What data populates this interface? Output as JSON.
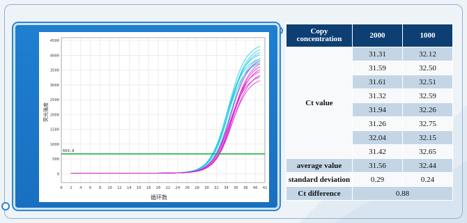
{
  "chart_data": {
    "type": "line",
    "xlabel": "循环数",
    "ylabel": "荧光强度",
    "xlim": [
      0,
      42
    ],
    "ylim": [
      -300,
      4600
    ],
    "x_ticks": [
      0,
      2,
      4,
      6,
      8,
      10,
      12,
      14,
      16,
      18,
      20,
      22,
      24,
      26,
      28,
      30,
      32,
      34,
      36,
      38,
      40,
      42
    ],
    "y_ticks": [
      0,
      500,
      1000,
      1500,
      2000,
      2500,
      3000,
      3500,
      4000,
      4500
    ],
    "threshold": {
      "value": 669.8,
      "label": "669.8",
      "color": "#22b14c"
    },
    "grid": true,
    "series": [
      {
        "color": "#19c8e6",
        "ct": 31.31,
        "plateau": 4400
      },
      {
        "color": "#19c8e6",
        "ct": 31.59,
        "plateau": 4300
      },
      {
        "color": "#19c8e6",
        "ct": 31.61,
        "plateau": 4200
      },
      {
        "color": "#19c8e6",
        "ct": 31.32,
        "plateau": 4100
      },
      {
        "color": "#19c8e6",
        "ct": 31.94,
        "plateau": 4000
      },
      {
        "color": "#19c8e6",
        "ct": 31.26,
        "plateau": 3950
      },
      {
        "color": "#19c8e6",
        "ct": 32.04,
        "plateau": 3900
      },
      {
        "color": "#19c8e6",
        "ct": 31.42,
        "plateau": 3800
      },
      {
        "color": "#e020d0",
        "ct": 32.12,
        "plateau": 3950
      },
      {
        "color": "#e020d0",
        "ct": 32.5,
        "plateau": 3850
      },
      {
        "color": "#e020d0",
        "ct": 32.51,
        "plateau": 3750
      },
      {
        "color": "#e020d0",
        "ct": 32.59,
        "plateau": 3650
      },
      {
        "color": "#e020d0",
        "ct": 32.26,
        "plateau": 3550
      },
      {
        "color": "#e020d0",
        "ct": 32.75,
        "plateau": 3450
      },
      {
        "color": "#e020d0",
        "ct": 32.15,
        "plateau": 3350
      },
      {
        "color": "#e020d0",
        "ct": 32.65,
        "plateau": 3250
      }
    ]
  },
  "table": {
    "header": {
      "col0": "Copy concentration",
      "col1": "2000",
      "col2": "1000"
    },
    "ct_label": "Ct value",
    "ct_rows": [
      [
        "31.31",
        "32.12"
      ],
      [
        "31.59",
        "32.50"
      ],
      [
        "31.61",
        "32.51"
      ],
      [
        "31.32",
        "32.59"
      ],
      [
        "31.94",
        "32.26"
      ],
      [
        "31.26",
        "32.75"
      ],
      [
        "32.04",
        "32.15"
      ],
      [
        "31.42",
        "32.65"
      ]
    ],
    "average": {
      "label": "average value",
      "v1": "31.56",
      "v2": "32.44"
    },
    "stdev": {
      "label": "standard deviation",
      "v1": "0.29",
      "v2": "0.24"
    },
    "diff": {
      "label": "Ct difference",
      "value": "0.88"
    }
  },
  "colors": {
    "header_bg": "#0e3f73",
    "shade": "#c4d6e6",
    "panel_blue": "#1f7fd0"
  }
}
